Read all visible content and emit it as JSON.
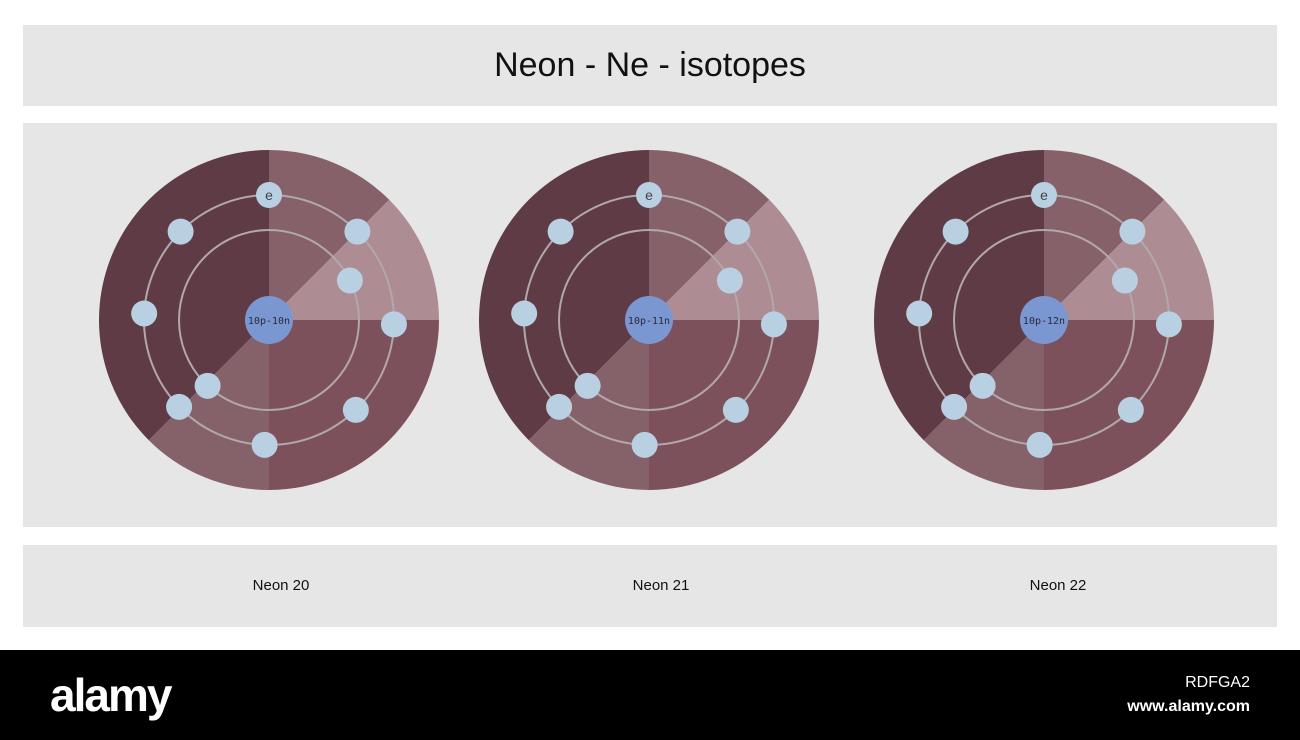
{
  "title": "Neon - Ne - isotopes",
  "electron_label": "e",
  "atoms": [
    {
      "name": "Neon 20",
      "nucleus": "10p-10n",
      "shells": [
        2,
        8
      ]
    },
    {
      "name": "Neon 21",
      "nucleus": "10p-11n",
      "shells": [
        2,
        8
      ]
    },
    {
      "name": "Neon 22",
      "nucleus": "10p-12n",
      "shells": [
        2,
        8
      ]
    }
  ],
  "colors": {
    "electron": "#b9d0e2",
    "nucleus": "#7b97d2",
    "orbit": "#b0a8aa",
    "panel": "#e6e6e6"
  },
  "footer": {
    "logo": "alamy",
    "code": "RDFGA2",
    "site": "www.alamy.com"
  }
}
